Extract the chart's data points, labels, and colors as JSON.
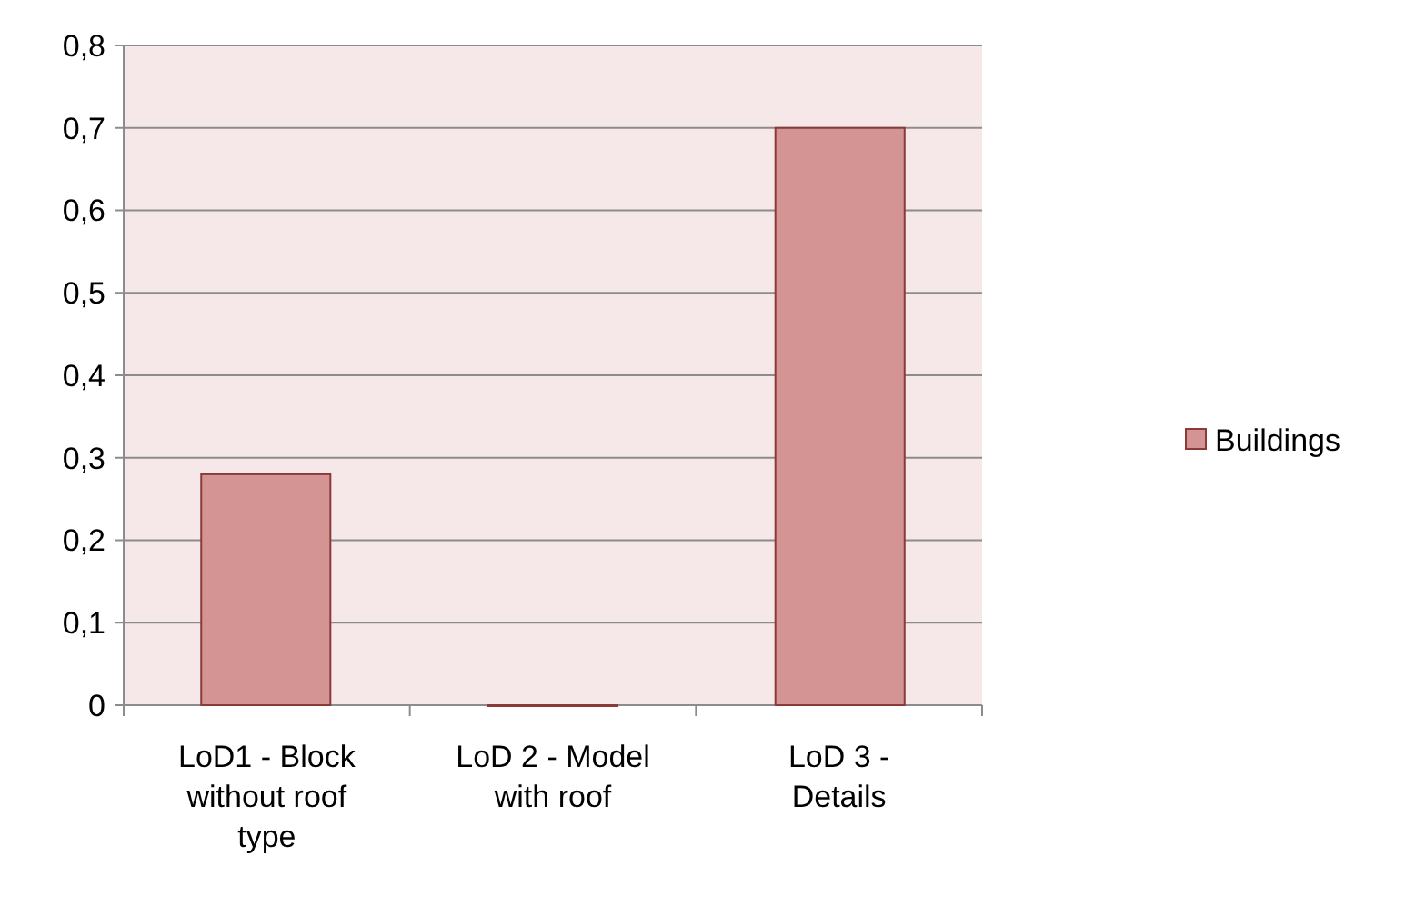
{
  "chart_data": {
    "type": "bar",
    "categories": [
      "LoD1 - Block without roof type",
      "LoD 2 - Model with roof",
      "LoD 3 - Details"
    ],
    "series": [
      {
        "name": "Buildings",
        "color": "#d49494",
        "values": [
          0.28,
          0,
          0.7
        ]
      }
    ],
    "ylim": [
      0,
      0.8
    ],
    "yticks": [
      {
        "value": 0,
        "label": "0"
      },
      {
        "value": 0.1,
        "label": "0,1"
      },
      {
        "value": 0.2,
        "label": "0,2"
      },
      {
        "value": 0.3,
        "label": "0,3"
      },
      {
        "value": 0.4,
        "label": "0,4"
      },
      {
        "value": 0.5,
        "label": "0,5"
      },
      {
        "value": 0.6,
        "label": "0,6"
      },
      {
        "value": 0.7,
        "label": "0,7"
      },
      {
        "value": 0.8,
        "label": "0,8"
      }
    ],
    "grid": true,
    "legend": "right"
  }
}
